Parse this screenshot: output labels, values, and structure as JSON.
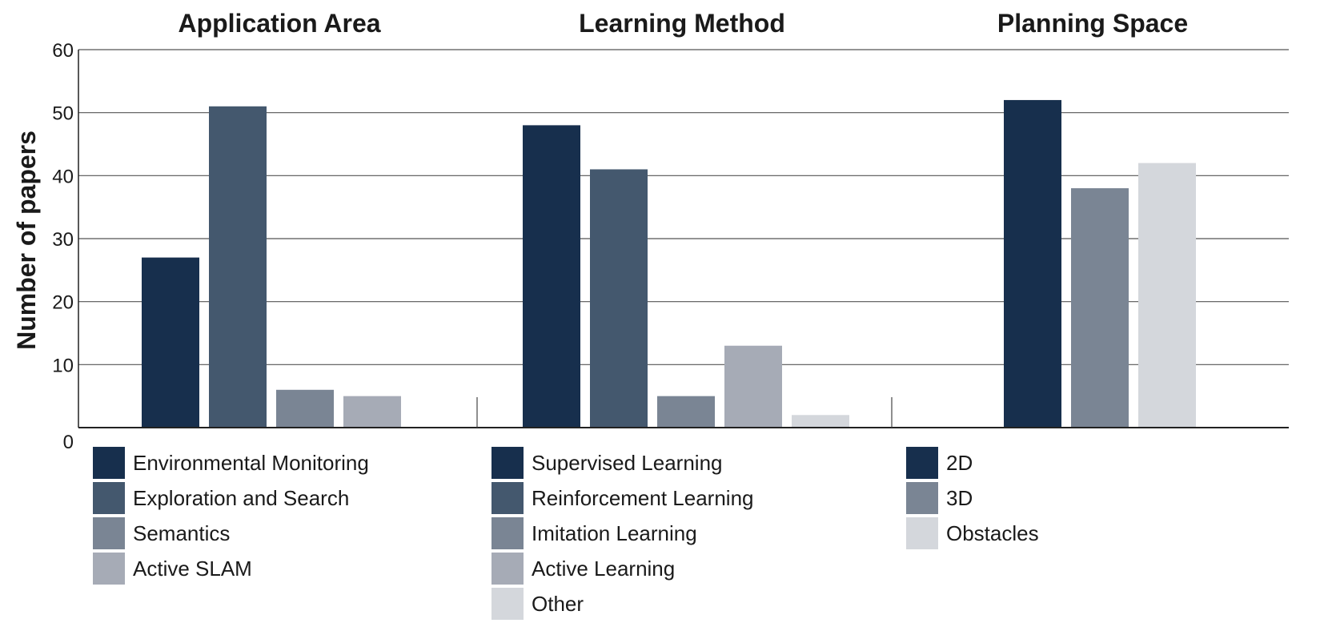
{
  "chart_data": {
    "type": "bar",
    "ylabel": "Number of papers",
    "ylim": [
      0,
      60
    ],
    "yticks": [
      0,
      10,
      20,
      30,
      40,
      50,
      60
    ],
    "grid": true,
    "legend_position": "below each group",
    "groups": [
      {
        "title": "Application Area",
        "categories": [
          "Environmental Monitoring",
          "Exploration and Search",
          "Semantics",
          "Active SLAM"
        ],
        "values": [
          27,
          51,
          6,
          5
        ],
        "colors": [
          "#172f4d",
          "#44586e",
          "#7a8594",
          "#a6abb6"
        ]
      },
      {
        "title": "Learning Method",
        "categories": [
          "Supervised Learning",
          "Reinforcement Learning",
          "Imitation Learning",
          "Active Learning",
          "Other"
        ],
        "values": [
          48,
          41,
          5,
          13,
          2
        ],
        "colors": [
          "#172f4d",
          "#44586e",
          "#7a8594",
          "#a6abb6",
          "#d4d7dc"
        ]
      },
      {
        "title": "Planning Space",
        "categories": [
          "2D",
          "3D",
          "Obstacles"
        ],
        "values": [
          52,
          38,
          42
        ],
        "colors": [
          "#172f4d",
          "#7a8594",
          "#d4d7dc"
        ]
      }
    ]
  }
}
